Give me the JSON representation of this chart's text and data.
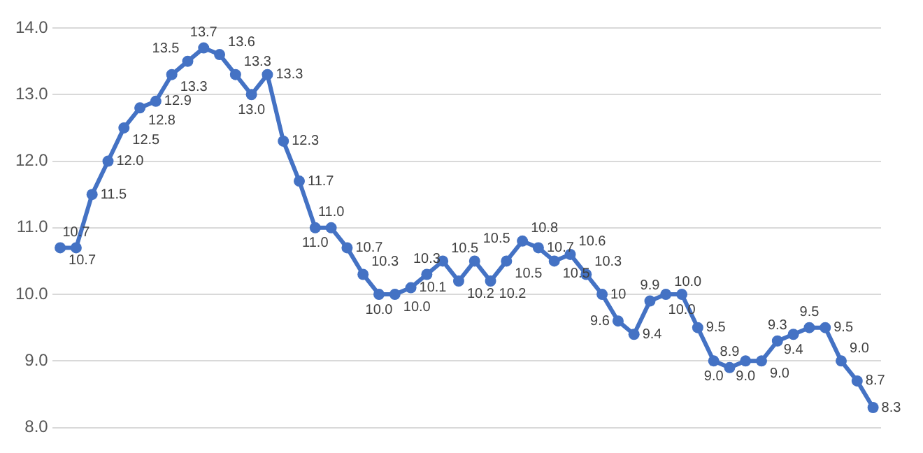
{
  "chart_data": {
    "type": "line",
    "categories": [
      null,
      null,
      null,
      null,
      null,
      null,
      null,
      null,
      null,
      null,
      null,
      null,
      null,
      null,
      null,
      null,
      null,
      null,
      null,
      null,
      null,
      null,
      null,
      null,
      null,
      null,
      null,
      null,
      null,
      null,
      null,
      null,
      null,
      null,
      null,
      null,
      null,
      null,
      null,
      null,
      null,
      null,
      null,
      null,
      null,
      null,
      null,
      null,
      null,
      null,
      null,
      null
    ],
    "series": [
      {
        "color": "#4472c4",
        "values": [
          10.7,
          10.7,
          11.5,
          12.0,
          12.5,
          12.8,
          12.9,
          13.3,
          13.5,
          13.7,
          13.6,
          13.3,
          13.0,
          13.3,
          12.3,
          11.7,
          11.0,
          11.0,
          10.7,
          10.3,
          10.0,
          10.0,
          10.1,
          10.3,
          10.5,
          10.2,
          10.5,
          10.2,
          10.5,
          10.8,
          10.7,
          10.5,
          10.6,
          10.3,
          10.0,
          9.6,
          9.4,
          9.9,
          10.0,
          10.0,
          9.5,
          9.0,
          8.9,
          9.0,
          9.0,
          9.3,
          9.4,
          9.5,
          9.5,
          9.0,
          8.7,
          8.3
        ],
        "value_labels": [
          "10.7",
          "10.7",
          "11.5",
          "12.0",
          "12.5",
          "12.8",
          "12.9",
          "13.3",
          "13.5",
          "13.7",
          "13.6",
          "13.3",
          "13.0",
          "13.3",
          "12.3",
          "11.7",
          "11.0",
          "11.0",
          "10.7",
          "10.3",
          "10.0",
          "10.0",
          "10.1",
          "10.3",
          "10.5",
          "10.2",
          "10.5",
          "10.2",
          "10.5",
          "10.8",
          "10.7",
          "10.5",
          "10.6",
          "10.3",
          "10",
          "9.6",
          "9.4",
          "9.9",
          "10.0",
          "10.0",
          "9.5",
          "9.0",
          "8.9",
          "9.0",
          "9.0",
          "9.3",
          "9.4",
          "9.5",
          "9.5",
          "9.0",
          "8.7",
          "8.3"
        ]
      }
    ],
    "ylim": [
      8,
      14
    ],
    "yticks": [
      {
        "value": 8,
        "label": "8.0"
      },
      {
        "value": 9,
        "label": "9.0"
      },
      {
        "value": 10,
        "label": "10.0"
      },
      {
        "value": 11,
        "label": "11.0"
      },
      {
        "value": 12,
        "label": "12.0"
      },
      {
        "value": 13,
        "label": "13.0"
      },
      {
        "value": 14,
        "label": "14.0"
      }
    ],
    "grid": "y",
    "legend": false,
    "marker": "circle",
    "line_style": "solid",
    "tick_labels": "y"
  }
}
